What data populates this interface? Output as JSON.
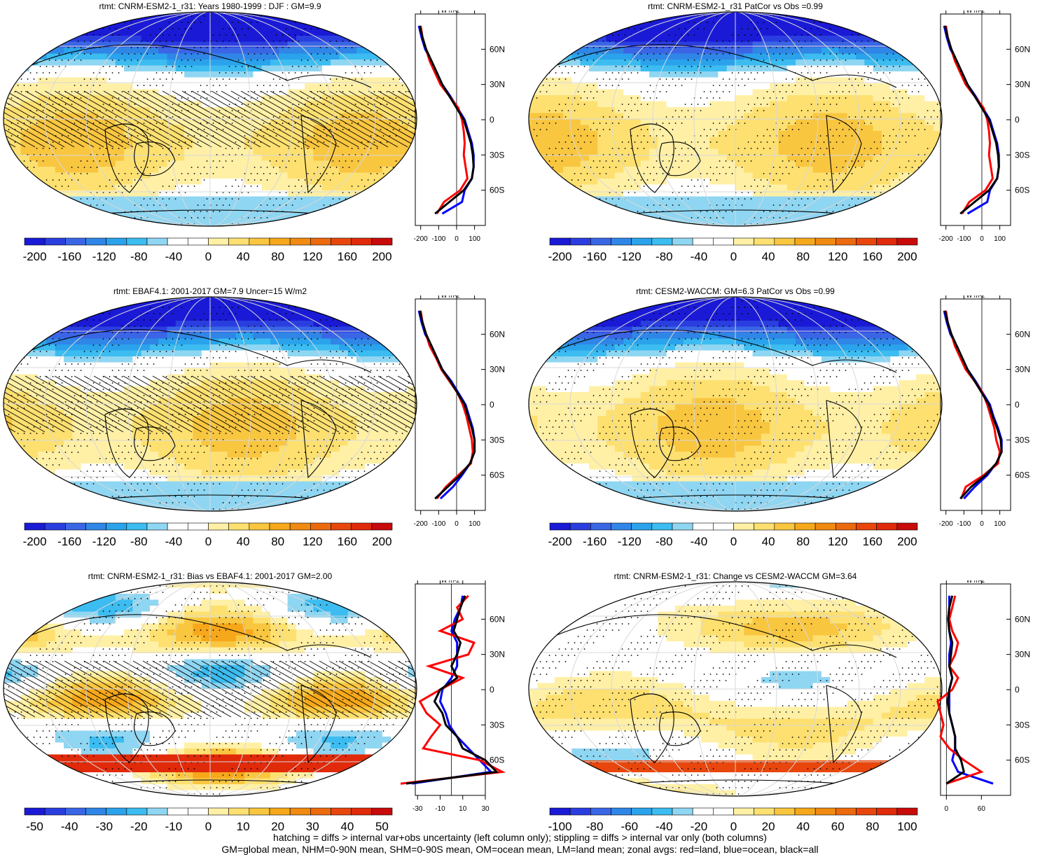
{
  "panels": [
    {
      "title": "rtmt: CNRM-ESM2-1_r31: Years 1980-1999 : DJF : GM=9.9",
      "colorbar_labels": [
        "-200",
        "-160",
        "-120",
        "-80",
        "-40",
        "0",
        "40",
        "80",
        "120",
        "160",
        "200"
      ],
      "zonal_unit": "W m-2",
      "zonal_xticks": [
        "-200",
        "-100",
        "0",
        "100"
      ],
      "zonal_yticks": [
        "60N",
        "30N",
        "0",
        "30S",
        "60S"
      ],
      "hatched": true,
      "kind": "abs"
    },
    {
      "title": "rtmt: CNRM-ESM2-1_r31 PatCor vs Obs =0.99",
      "colorbar_labels": [
        "-200",
        "-160",
        "-120",
        "-80",
        "-40",
        "0",
        "40",
        "80",
        "120",
        "160",
        "200"
      ],
      "zonal_unit": "W m-2",
      "zonal_xticks": [
        "-200",
        "-100",
        "0",
        "100"
      ],
      "zonal_yticks": [
        "60N",
        "30N",
        "0",
        "30S",
        "60S"
      ],
      "hatched": false,
      "kind": "abs"
    },
    {
      "title": "rtmt: EBAF4.1: 2001-2017 GM=7.9 Uncer=15 W/m2",
      "colorbar_labels": [
        "-200",
        "-160",
        "-120",
        "-80",
        "-40",
        "0",
        "40",
        "80",
        "120",
        "160",
        "200"
      ],
      "zonal_unit": "W m-2",
      "zonal_xticks": [
        "-200",
        "-100",
        "0",
        "100"
      ],
      "zonal_yticks": [
        "60N",
        "30N",
        "0",
        "30S",
        "60S"
      ],
      "hatched": true,
      "kind": "abs"
    },
    {
      "title": "rtmt: CESM2-WACCM: GM=6.3 PatCor vs Obs =0.99",
      "colorbar_labels": [
        "-200",
        "-160",
        "-120",
        "-80",
        "-40",
        "0",
        "40",
        "80",
        "120",
        "160",
        "200"
      ],
      "zonal_unit": "W m-2",
      "zonal_xticks": [
        "-200",
        "-100",
        "0",
        "100"
      ],
      "zonal_yticks": [
        "60N",
        "30N",
        "0",
        "30S",
        "60S"
      ],
      "hatched": false,
      "kind": "abs"
    },
    {
      "title": "rtmt: CNRM-ESM2-1_r31: Bias vs EBAF4.1: 2001-2017 GM=2.00",
      "colorbar_labels": [
        "-50",
        "-40",
        "-30",
        "-20",
        "-10",
        "0",
        "10",
        "20",
        "30",
        "40",
        "50"
      ],
      "zonal_unit": "W m-2",
      "zonal_xticks": [
        "-30",
        "-10",
        "10",
        "30"
      ],
      "zonal_yticks": [
        "60N",
        "30N",
        "0",
        "30S",
        "60S"
      ],
      "hatched": true,
      "kind": "bias"
    },
    {
      "title": "rtmt: CNRM-ESM2-1_r31: Change vs CESM2-WACCM GM=3.64",
      "colorbar_labels": [
        "-100",
        "-80",
        "-60",
        "-40",
        "-20",
        "0",
        "20",
        "40",
        "60",
        "80",
        "100"
      ],
      "zonal_unit": "W m-2",
      "zonal_xticks": [
        "0",
        "60"
      ],
      "zonal_yticks": [
        "60N",
        "30N",
        "0",
        "30S",
        "60S"
      ],
      "hatched": false,
      "kind": "change"
    }
  ],
  "colors": {
    "palette": [
      "#1a1ad6",
      "#2a3ee0",
      "#3a66e6",
      "#2f86e6",
      "#2aa3ec",
      "#3cbcf0",
      "#8fd6f2",
      "#ffffff",
      "#ffffff",
      "#fff0a6",
      "#fde070",
      "#f9c640",
      "#f6a81a",
      "#f08a10",
      "#ec6a0e",
      "#e8460c",
      "#e02a0a",
      "#c80a0a"
    ],
    "land_series": "#ff0000",
    "ocean_series": "#0000ff",
    "all_series": "#000000"
  },
  "chart_data": [
    {
      "type": "heatmap",
      "title": "rtmt: CNRM-ESM2-1_r31: Years 1980-1999 : DJF : GM=9.9",
      "zlim": [
        -200,
        200
      ],
      "zonal_profile": {
        "lat": [
          -80,
          -70,
          -60,
          -50,
          -40,
          -30,
          -20,
          -10,
          0,
          10,
          20,
          30,
          40,
          50,
          60,
          70,
          80
        ],
        "all": [
          -120,
          -40,
          40,
          85,
          95,
          90,
          80,
          60,
          40,
          0,
          -40,
          -80,
          -110,
          -140,
          -170,
          -190,
          -205
        ],
        "land": [
          -110,
          -70,
          20,
          60,
          50,
          40,
          45,
          40,
          30,
          10,
          -40,
          -90,
          -120,
          -150,
          -170,
          -190,
          -200
        ],
        "ocean": [
          -80,
          30,
          45,
          85,
          95,
          95,
          85,
          65,
          45,
          5,
          -35,
          -80,
          -110,
          -140,
          -175,
          -195,
          -210
        ]
      }
    },
    {
      "type": "heatmap",
      "title": "rtmt: CNRM-ESM2-1_r31 PatCor vs Obs =0.99",
      "zlim": [
        -200,
        200
      ],
      "zonal_profile": {
        "lat": [
          -80,
          -70,
          -60,
          -50,
          -40,
          -30,
          -20,
          -10,
          0,
          10,
          20,
          30,
          40,
          50,
          60,
          70,
          80
        ],
        "all": [
          -120,
          -40,
          40,
          85,
          95,
          90,
          80,
          60,
          40,
          0,
          -40,
          -80,
          -110,
          -140,
          -170,
          -190,
          -205
        ],
        "land": [
          -110,
          -70,
          20,
          60,
          50,
          40,
          45,
          40,
          30,
          10,
          -40,
          -90,
          -120,
          -150,
          -170,
          -190,
          -200
        ],
        "ocean": [
          -80,
          30,
          45,
          85,
          95,
          95,
          85,
          65,
          45,
          5,
          -35,
          -80,
          -110,
          -140,
          -175,
          -195,
          -210
        ]
      }
    },
    {
      "type": "heatmap",
      "title": "rtmt: EBAF4.1: 2001-2017 GM=7.9 Uncer=15 W/m2",
      "zlim": [
        -200,
        200
      ],
      "zonal_profile": {
        "lat": [
          -80,
          -70,
          -60,
          -50,
          -40,
          -30,
          -20,
          -10,
          0,
          10,
          20,
          30,
          40,
          50,
          60,
          70,
          80
        ],
        "all": [
          -120,
          -50,
          20,
          75,
          100,
          100,
          85,
          65,
          45,
          5,
          -35,
          -80,
          -110,
          -140,
          -170,
          -190,
          -205
        ],
        "land": [
          -110,
          -60,
          10,
          80,
          90,
          85,
          70,
          55,
          35,
          5,
          -40,
          -85,
          -115,
          -150,
          -170,
          -190,
          -200
        ],
        "ocean": [
          -90,
          -20,
          30,
          75,
          100,
          100,
          90,
          70,
          50,
          10,
          -30,
          -80,
          -110,
          -140,
          -175,
          -195,
          -210
        ]
      }
    },
    {
      "type": "heatmap",
      "title": "rtmt: CESM2-WACCM: GM=6.3 PatCor vs Obs =0.99",
      "zlim": [
        -200,
        200
      ],
      "zonal_profile": {
        "lat": [
          -80,
          -70,
          -60,
          -50,
          -40,
          -30,
          -20,
          -10,
          0,
          10,
          20,
          30,
          40,
          50,
          60,
          70,
          80
        ],
        "all": [
          -120,
          -60,
          20,
          80,
          110,
          105,
          85,
          60,
          40,
          0,
          -40,
          -80,
          -110,
          -140,
          -170,
          -190,
          -205
        ],
        "land": [
          -115,
          -90,
          10,
          90,
          100,
          80,
          70,
          50,
          30,
          5,
          -40,
          -90,
          -120,
          -150,
          -170,
          -190,
          -200
        ],
        "ocean": [
          -100,
          -40,
          30,
          80,
          110,
          110,
          90,
          65,
          45,
          5,
          -35,
          -80,
          -110,
          -140,
          -175,
          -195,
          -210
        ]
      }
    },
    {
      "type": "heatmap",
      "title": "rtmt: CNRM-ESM2-1_r31: Bias vs EBAF4.1: 2001-2017 GM=2.00",
      "zlim": [
        -50,
        50
      ],
      "zonal_profile": {
        "lat": [
          -80,
          -70,
          -60,
          -50,
          -40,
          -30,
          -20,
          -10,
          0,
          10,
          20,
          30,
          40,
          50,
          60,
          70,
          80
        ],
        "all": [
          -40,
          40,
          30,
          10,
          5,
          -5,
          -8,
          -15,
          -10,
          5,
          0,
          5,
          8,
          2,
          5,
          8,
          12
        ],
        "land": [
          -45,
          45,
          25,
          -25,
          -18,
          -10,
          -22,
          -28,
          -10,
          10,
          -20,
          15,
          20,
          -10,
          10,
          5,
          15
        ],
        "ocean": [
          -35,
          35,
          25,
          15,
          5,
          -2,
          -5,
          -10,
          -8,
          0,
          5,
          5,
          5,
          0,
          3,
          8,
          10
        ]
      }
    },
    {
      "type": "heatmap",
      "title": "rtmt: CNRM-ESM2-1_r31: Change vs CESM2-WACCM GM=3.64",
      "zlim": [
        -100,
        100
      ],
      "zonal_profile": {
        "lat": [
          -80,
          -70,
          -60,
          -50,
          -40,
          -30,
          -20,
          -10,
          0,
          10,
          20,
          30,
          40,
          50,
          60,
          70,
          80
        ],
        "all": [
          0,
          30,
          25,
          15,
          15,
          10,
          5,
          2,
          5,
          10,
          5,
          8,
          10,
          5,
          3,
          5,
          10
        ],
        "land": [
          0,
          60,
          30,
          5,
          -10,
          -5,
          -10,
          -15,
          10,
          20,
          5,
          15,
          20,
          10,
          5,
          10,
          15
        ],
        "ocean": [
          80,
          20,
          10,
          15,
          15,
          10,
          5,
          5,
          5,
          10,
          5,
          5,
          8,
          5,
          3,
          5,
          5
        ]
      }
    }
  ],
  "footer": {
    "line1": "hatching = diffs > internal var+obs uncertainty (left column only); stippling = diffs > internal var only (both columns)",
    "line2": "GM=global mean, NHM=0-90N mean, SHM=0-90S mean, OM=ocean mean, LM=land mean; zonal avgs: red=land, blue=ocean, black=all"
  }
}
